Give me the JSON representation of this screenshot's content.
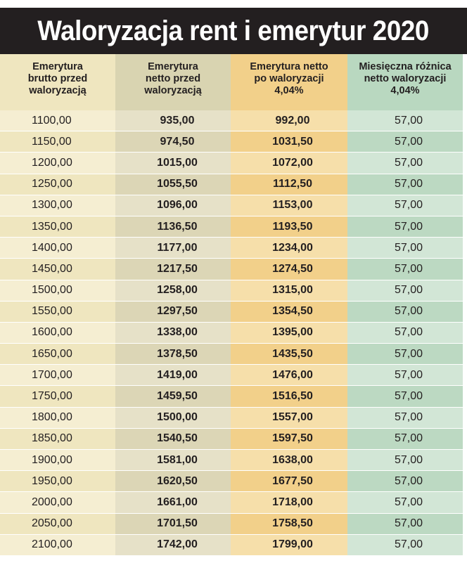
{
  "title": "Waloryzacja rent i emerytur 2020",
  "table": {
    "headers": [
      "Emerytura\nbrutto przed\nwaloryzacją",
      "Emerytura\nnetto przed\nwaloryzacją",
      "Emerytura netto\npo waloryzacji\n4,04%",
      "Miesięczna różnica\nnetto  waloryzacji\n4,04%"
    ],
    "rows": [
      [
        "1100,00",
        "935,00",
        "992,00",
        "57,00"
      ],
      [
        "1150,00",
        "974,50",
        "1031,50",
        "57,00"
      ],
      [
        "1200,00",
        "1015,00",
        "1072,00",
        "57,00"
      ],
      [
        "1250,00",
        "1055,50",
        "1112,50",
        "57,00"
      ],
      [
        "1300,00",
        "1096,00",
        "1153,00",
        "57,00"
      ],
      [
        "1350,00",
        "1136,50",
        "1193,50",
        "57,00"
      ],
      [
        "1400,00",
        "1177,00",
        "1234,00",
        "57,00"
      ],
      [
        "1450,00",
        "1217,50",
        "1274,50",
        "57,00"
      ],
      [
        "1500,00",
        "1258,00",
        "1315,00",
        "57,00"
      ],
      [
        "1550,00",
        "1297,50",
        "1354,50",
        "57,00"
      ],
      [
        "1600,00",
        "1338,00",
        "1395,00",
        "57,00"
      ],
      [
        "1650,00",
        "1378,50",
        "1435,50",
        "57,00"
      ],
      [
        "1700,00",
        "1419,00",
        "1476,00",
        "57,00"
      ],
      [
        "1750,00",
        "1459,50",
        "1516,50",
        "57,00"
      ],
      [
        "1800,00",
        "1500,00",
        "1557,00",
        "57,00"
      ],
      [
        "1850,00",
        "1540,50",
        "1597,50",
        "57,00"
      ],
      [
        "1900,00",
        "1581,00",
        "1638,00",
        "57,00"
      ],
      [
        "1950,00",
        "1620,50",
        "1677,50",
        "57,00"
      ],
      [
        "2000,00",
        "1661,00",
        "1718,00",
        "57,00"
      ],
      [
        "2050,00",
        "1701,50",
        "1758,50",
        "57,00"
      ],
      [
        "2100,00",
        "1742,00",
        "1799,00",
        "57,00"
      ]
    ]
  },
  "colors": {
    "title_bg": "#231f20",
    "col1": "#efe6bf",
    "col2": "#d9d4b1",
    "col3": "#f2d08a",
    "col4": "#b9d8c0"
  }
}
